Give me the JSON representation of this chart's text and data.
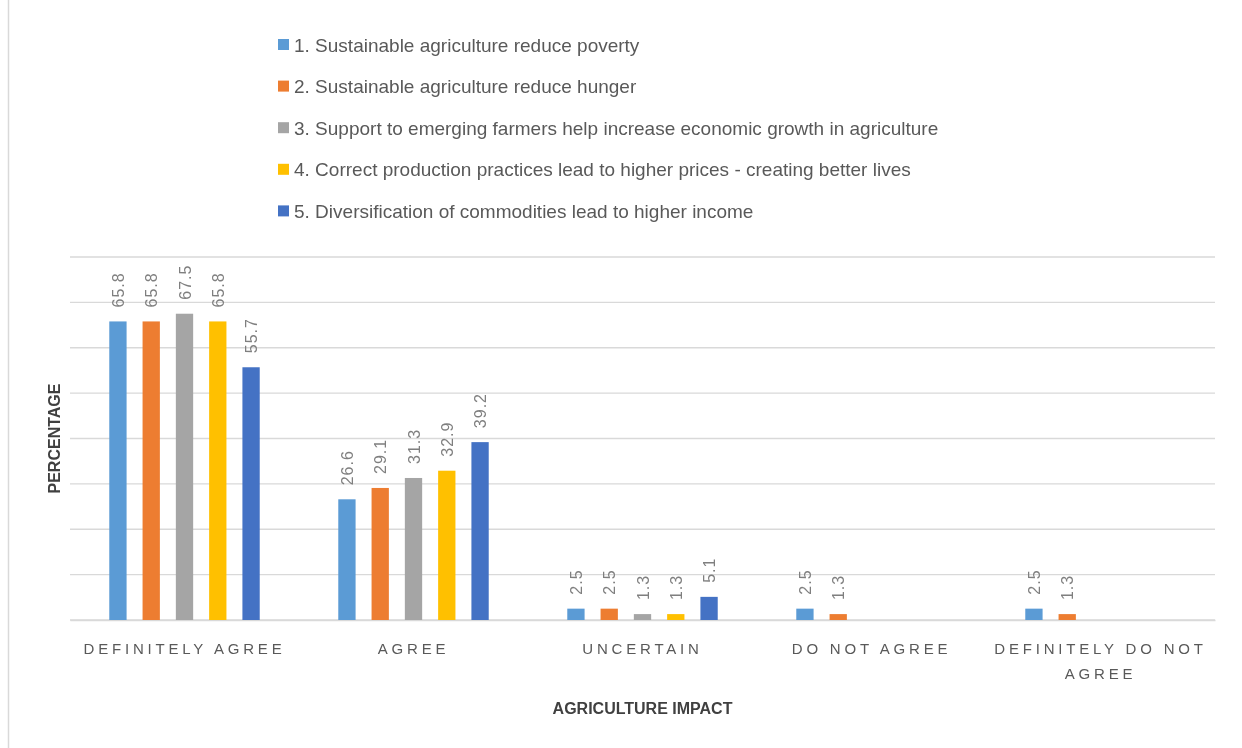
{
  "chart_data": {
    "type": "bar",
    "xlabel": "AGRICULTURE IMPACT",
    "ylabel": "PERCENTAGE",
    "categories": [
      "DEFINITELY AGREE",
      "AGREE",
      "UNCERTAIN",
      "DO NOT AGREE",
      "DEFINITELY DO NOT AGREE"
    ],
    "series": [
      {
        "name": "1. Sustainable agriculture reduce poverty",
        "color": "#5b9bd5",
        "values": [
          65.8,
          26.6,
          2.5,
          2.5,
          2.5
        ]
      },
      {
        "name": "2. Sustainable agriculture reduce hunger",
        "color": "#ed7d31",
        "values": [
          65.8,
          29.1,
          2.5,
          1.3,
          1.3
        ]
      },
      {
        "name": "3. Support to emerging farmers help increase economic growth in agriculture",
        "color": "#a5a5a5",
        "values": [
          67.5,
          31.3,
          1.3,
          null,
          null
        ]
      },
      {
        "name": "4. Correct production practices lead to higher prices - creating better lives",
        "color": "#ffc000",
        "values": [
          65.8,
          32.9,
          1.3,
          null,
          null
        ]
      },
      {
        "name": "5. Diversification of commodities lead to higher income",
        "color": "#4472c4",
        "values": [
          55.7,
          39.2,
          5.1,
          null,
          null
        ]
      }
    ],
    "ylim": [
      0,
      80
    ],
    "yticks": [
      {
        "value": 0,
        "label": null
      },
      {
        "value": 10,
        "label": null
      },
      {
        "value": 20,
        "label": null
      },
      {
        "value": 30,
        "label": null
      },
      {
        "value": 40,
        "label": null
      },
      {
        "value": 50,
        "label": null
      },
      {
        "value": 60,
        "label": null
      },
      {
        "value": 70,
        "label": null
      },
      {
        "value": 80,
        "label": null
      }
    ],
    "grid": "y",
    "legend": "top",
    "data_labels": true,
    "tick_labels": "x"
  }
}
